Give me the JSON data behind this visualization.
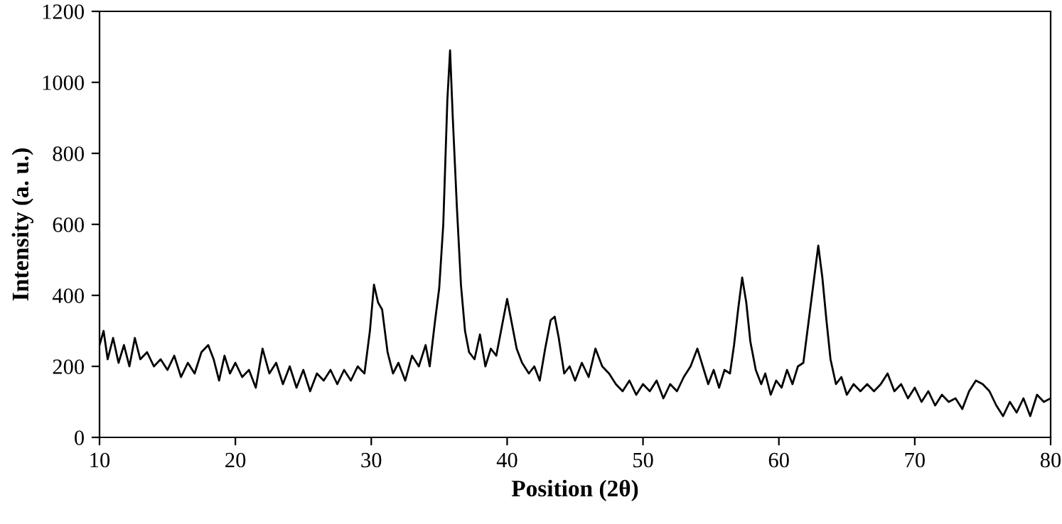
{
  "chart_data": {
    "type": "line",
    "xlabel": "Position (2θ)",
    "ylabel": "Intensity (a. u.)",
    "xlim": [
      10,
      80
    ],
    "xticks": [
      10,
      20,
      30,
      40,
      50,
      60,
      70,
      80
    ],
    "ylim": [
      0,
      1200
    ],
    "yticks": [
      0,
      200,
      400,
      600,
      800,
      1000,
      1200
    ],
    "grid": false,
    "legend": false,
    "marker": "none",
    "line_style": "solid",
    "series": [
      {
        "color": "#000000",
        "x": [
          10,
          10.3,
          10.6,
          11,
          11.4,
          11.8,
          12.2,
          12.6,
          13,
          13.5,
          14,
          14.5,
          15,
          15.5,
          16,
          16.5,
          17,
          17.5,
          18,
          18.4,
          18.8,
          19.2,
          19.6,
          20,
          20.5,
          21,
          21.5,
          22,
          22.5,
          23,
          23.5,
          24,
          24.5,
          25,
          25.5,
          26,
          26.5,
          27,
          27.5,
          28,
          28.5,
          29,
          29.5,
          29.9,
          30.2,
          30.5,
          30.8,
          31.2,
          31.6,
          32,
          32.5,
          33,
          33.5,
          34,
          34.3,
          34.7,
          35,
          35.3,
          35.6,
          35.8,
          36.0,
          36.3,
          36.6,
          36.9,
          37.2,
          37.6,
          38,
          38.4,
          38.8,
          39.2,
          39.6,
          40,
          40.3,
          40.7,
          41.1,
          41.6,
          42,
          42.4,
          42.8,
          43.2,
          43.5,
          43.8,
          44.2,
          44.6,
          45,
          45.5,
          46,
          46.5,
          47,
          47.5,
          48,
          48.5,
          49,
          49.5,
          50,
          50.5,
          51,
          51.5,
          52,
          52.5,
          53,
          53.5,
          54,
          54.4,
          54.8,
          55.2,
          55.6,
          56,
          56.4,
          56.7,
          57,
          57.3,
          57.6,
          57.9,
          58.3,
          58.7,
          59,
          59.4,
          59.8,
          60.2,
          60.6,
          61,
          61.4,
          61.8,
          62.2,
          62.6,
          62.9,
          63.2,
          63.5,
          63.8,
          64.2,
          64.6,
          65,
          65.5,
          66,
          66.5,
          67,
          67.5,
          68,
          68.5,
          69,
          69.5,
          70,
          70.5,
          71,
          71.5,
          72,
          72.5,
          73,
          73.5,
          74,
          74.5,
          75,
          75.5,
          76,
          76.5,
          77,
          77.5,
          78,
          78.5,
          79,
          79.5,
          80
        ],
        "values": [
          260,
          300,
          220,
          280,
          210,
          260,
          200,
          280,
          220,
          240,
          200,
          220,
          190,
          230,
          170,
          210,
          180,
          240,
          260,
          220,
          160,
          230,
          180,
          210,
          170,
          190,
          140,
          250,
          180,
          210,
          150,
          200,
          140,
          190,
          130,
          180,
          160,
          190,
          150,
          190,
          160,
          200,
          180,
          300,
          430,
          380,
          360,
          240,
          180,
          210,
          160,
          230,
          200,
          260,
          200,
          330,
          420,
          600,
          950,
          1090,
          900,
          650,
          430,
          300,
          240,
          220,
          290,
          200,
          250,
          230,
          310,
          390,
          330,
          250,
          210,
          180,
          200,
          160,
          250,
          330,
          340,
          280,
          180,
          200,
          160,
          210,
          170,
          250,
          200,
          180,
          150,
          130,
          160,
          120,
          150,
          130,
          160,
          110,
          150,
          130,
          170,
          200,
          250,
          200,
          150,
          190,
          140,
          190,
          180,
          260,
          360,
          450,
          380,
          270,
          190,
          150,
          180,
          120,
          160,
          140,
          190,
          150,
          200,
          210,
          330,
          450,
          540,
          450,
          330,
          220,
          150,
          170,
          120,
          150,
          130,
          150,
          130,
          150,
          180,
          130,
          150,
          110,
          140,
          100,
          130,
          90,
          120,
          100,
          110,
          80,
          130,
          160,
          150,
          130,
          90,
          60,
          100,
          70,
          110,
          60,
          120,
          100,
          110
        ]
      }
    ]
  }
}
